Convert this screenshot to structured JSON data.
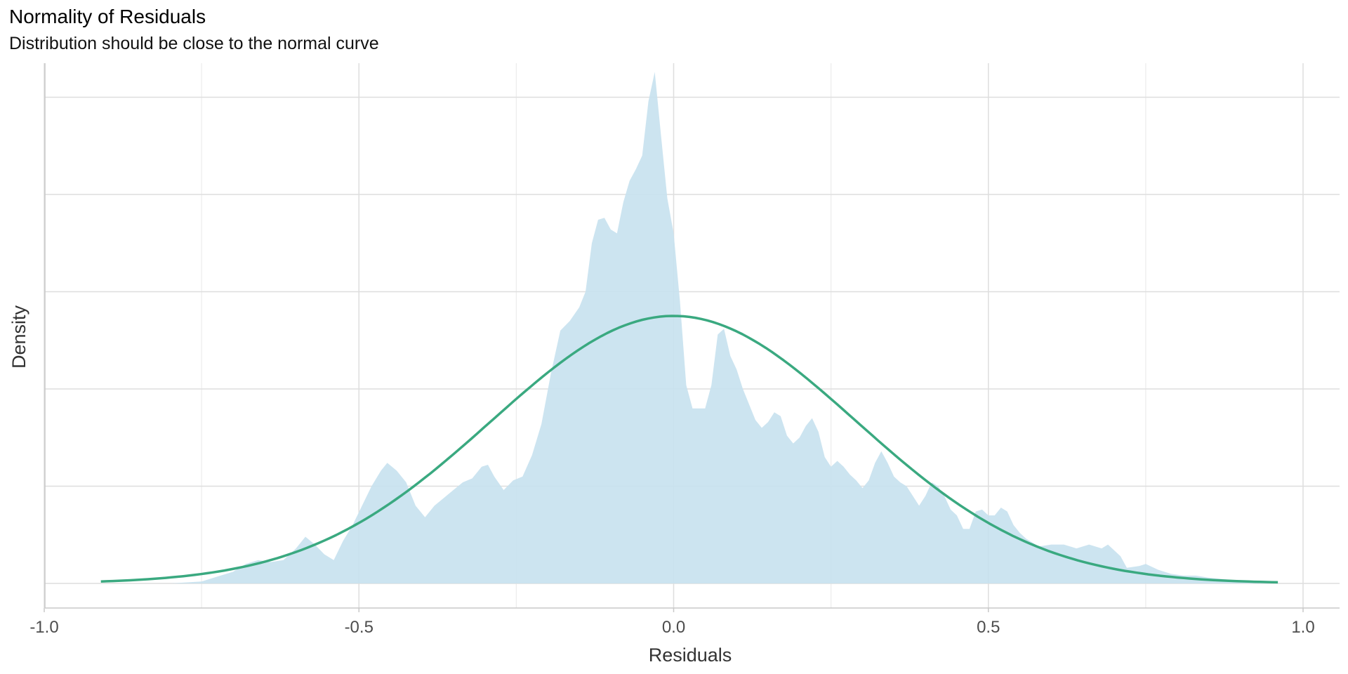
{
  "chart_data": {
    "type": "area",
    "title": "Normality of Residuals",
    "subtitle": "Distribution should be close to the normal curve",
    "xlabel": "Residuals",
    "ylabel": "Density",
    "xlim": [
      -1.0,
      1.0
    ],
    "ylim": [
      0,
      2.65
    ],
    "x_ticks": [
      -1.0,
      -0.5,
      0.0,
      0.5,
      1.0
    ],
    "x_tick_labels": [
      "-1.0",
      "-0.5",
      "0.0",
      "0.5",
      "1.0"
    ],
    "y_gridlines": [
      0.5,
      1.0,
      1.5,
      2.0,
      2.5
    ],
    "y_tick_labels": [],
    "grid": true,
    "series": [
      {
        "kind": "density",
        "color": "#c6e1ee",
        "points": [
          [
            -0.91,
            0.0
          ],
          [
            -0.8,
            0.0
          ],
          [
            -0.75,
            0.01
          ],
          [
            -0.72,
            0.04
          ],
          [
            -0.7,
            0.06
          ],
          [
            -0.68,
            0.1
          ],
          [
            -0.66,
            0.12
          ],
          [
            -0.64,
            0.11
          ],
          [
            -0.62,
            0.12
          ],
          [
            -0.6,
            0.18
          ],
          [
            -0.585,
            0.24
          ],
          [
            -0.57,
            0.2
          ],
          [
            -0.555,
            0.15
          ],
          [
            -0.54,
            0.12
          ],
          [
            -0.525,
            0.22
          ],
          [
            -0.51,
            0.3
          ],
          [
            -0.495,
            0.4
          ],
          [
            -0.48,
            0.5
          ],
          [
            -0.465,
            0.58
          ],
          [
            -0.455,
            0.62
          ],
          [
            -0.44,
            0.58
          ],
          [
            -0.425,
            0.52
          ],
          [
            -0.41,
            0.4
          ],
          [
            -0.395,
            0.34
          ],
          [
            -0.38,
            0.4
          ],
          [
            -0.365,
            0.44
          ],
          [
            -0.35,
            0.48
          ],
          [
            -0.335,
            0.52
          ],
          [
            -0.32,
            0.54
          ],
          [
            -0.305,
            0.6
          ],
          [
            -0.295,
            0.61
          ],
          [
            -0.285,
            0.55
          ],
          [
            -0.27,
            0.48
          ],
          [
            -0.255,
            0.53
          ],
          [
            -0.24,
            0.55
          ],
          [
            -0.225,
            0.66
          ],
          [
            -0.21,
            0.82
          ],
          [
            -0.195,
            1.08
          ],
          [
            -0.18,
            1.3
          ],
          [
            -0.165,
            1.35
          ],
          [
            -0.15,
            1.42
          ],
          [
            -0.14,
            1.5
          ],
          [
            -0.13,
            1.75
          ],
          [
            -0.12,
            1.87
          ],
          [
            -0.11,
            1.88
          ],
          [
            -0.1,
            1.82
          ],
          [
            -0.09,
            1.8
          ],
          [
            -0.08,
            1.96
          ],
          [
            -0.07,
            2.07
          ],
          [
            -0.06,
            2.13
          ],
          [
            -0.05,
            2.2
          ],
          [
            -0.04,
            2.48
          ],
          [
            -0.03,
            2.63
          ],
          [
            -0.02,
            2.3
          ],
          [
            -0.01,
            1.98
          ],
          [
            0.0,
            1.8
          ],
          [
            0.01,
            1.45
          ],
          [
            0.02,
            1.02
          ],
          [
            0.03,
            0.9
          ],
          [
            0.04,
            0.9
          ],
          [
            0.05,
            0.9
          ],
          [
            0.06,
            1.02
          ],
          [
            0.07,
            1.28
          ],
          [
            0.08,
            1.31
          ],
          [
            0.09,
            1.17
          ],
          [
            0.1,
            1.1
          ],
          [
            0.11,
            1.0
          ],
          [
            0.12,
            0.92
          ],
          [
            0.13,
            0.84
          ],
          [
            0.14,
            0.8
          ],
          [
            0.15,
            0.83
          ],
          [
            0.16,
            0.88
          ],
          [
            0.17,
            0.86
          ],
          [
            0.18,
            0.76
          ],
          [
            0.19,
            0.72
          ],
          [
            0.2,
            0.75
          ],
          [
            0.21,
            0.81
          ],
          [
            0.22,
            0.85
          ],
          [
            0.23,
            0.78
          ],
          [
            0.24,
            0.65
          ],
          [
            0.25,
            0.6
          ],
          [
            0.26,
            0.63
          ],
          [
            0.27,
            0.6
          ],
          [
            0.28,
            0.56
          ],
          [
            0.29,
            0.53
          ],
          [
            0.3,
            0.49
          ],
          [
            0.31,
            0.53
          ],
          [
            0.32,
            0.62
          ],
          [
            0.33,
            0.68
          ],
          [
            0.34,
            0.62
          ],
          [
            0.35,
            0.55
          ],
          [
            0.36,
            0.52
          ],
          [
            0.37,
            0.5
          ],
          [
            0.38,
            0.45
          ],
          [
            0.39,
            0.4
          ],
          [
            0.4,
            0.45
          ],
          [
            0.41,
            0.52
          ],
          [
            0.42,
            0.5
          ],
          [
            0.43,
            0.45
          ],
          [
            0.44,
            0.38
          ],
          [
            0.45,
            0.35
          ],
          [
            0.46,
            0.28
          ],
          [
            0.47,
            0.28
          ],
          [
            0.48,
            0.37
          ],
          [
            0.49,
            0.38
          ],
          [
            0.5,
            0.35
          ],
          [
            0.51,
            0.35
          ],
          [
            0.52,
            0.39
          ],
          [
            0.53,
            0.37
          ],
          [
            0.54,
            0.3
          ],
          [
            0.55,
            0.26
          ],
          [
            0.56,
            0.23
          ],
          [
            0.57,
            0.21
          ],
          [
            0.58,
            0.19
          ],
          [
            0.6,
            0.2
          ],
          [
            0.62,
            0.2
          ],
          [
            0.64,
            0.18
          ],
          [
            0.66,
            0.2
          ],
          [
            0.68,
            0.18
          ],
          [
            0.69,
            0.2
          ],
          [
            0.71,
            0.14
          ],
          [
            0.72,
            0.08
          ],
          [
            0.74,
            0.09
          ],
          [
            0.75,
            0.1
          ],
          [
            0.77,
            0.07
          ],
          [
            0.79,
            0.05
          ],
          [
            0.81,
            0.04
          ],
          [
            0.83,
            0.04
          ],
          [
            0.85,
            0.03
          ],
          [
            0.88,
            0.02
          ],
          [
            0.92,
            0.01
          ],
          [
            0.96,
            0.0
          ]
        ]
      },
      {
        "kind": "normal-curve",
        "color": "#3aa980",
        "mean": 0.0,
        "sd": 0.29,
        "x_range": [
          -0.91,
          0.96
        ]
      }
    ]
  }
}
